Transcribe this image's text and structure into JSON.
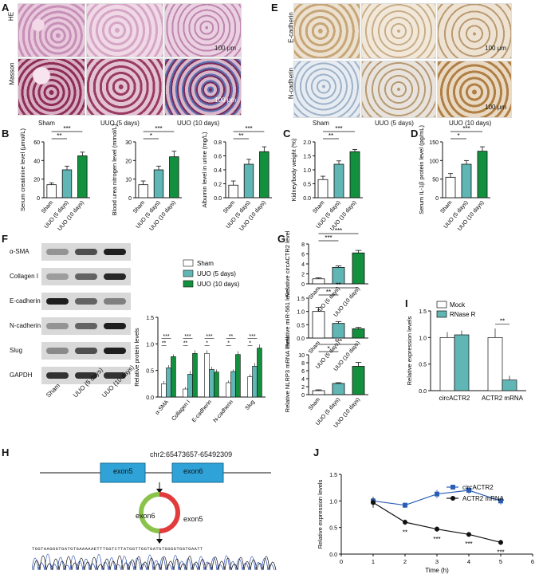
{
  "panels": {
    "A": {
      "letter": "A",
      "row_labels": [
        "HE",
        "Masson"
      ],
      "col_labels": [
        "Sham",
        "UUO (5 days)",
        "UUO (10 days)"
      ],
      "scalebar": "100 μm",
      "colors": {
        "he": "#c48fb4",
        "masson": "#8f3a5a"
      }
    },
    "E": {
      "letter": "E",
      "row_labels": [
        "E-cadherin",
        "N-cadherin"
      ],
      "col_labels": [
        "Sham",
        "UUO (5 days)",
        "UUO (10 days)"
      ],
      "scalebar": "100 μm",
      "colors": {
        "ihc": "#c9a77a",
        "ihc_bg": "#b8c6d6"
      }
    },
    "F": {
      "letter": "F",
      "blot_labels": [
        "α-SMA",
        "Collagen I",
        "E-cadherin",
        "N-cadherin",
        "Slug",
        "GAPDH"
      ],
      "blot_cols": [
        "Sham",
        "UUO (5 days)",
        "UUO (10 days)"
      ]
    },
    "H": {
      "letter": "H",
      "locus": "chr2:65473657-65492309",
      "exon5": "exon5",
      "exon6": "exon6",
      "sequence": "TGGTAAGGGTGATGTGAAAAAETTTGGTCTTATGGTTGGTGATGTGGGGTGGTGAATT"
    }
  },
  "colors": {
    "sham": "#ffffff",
    "uuo5": "#5fb6b4",
    "uuo10": "#13903e",
    "mock": "#ffffff",
    "rnase": "#5fb6b4",
    "circ_line": "#2b5fb5",
    "mrna_line": "#111111"
  },
  "chart_data": [
    {
      "id": "B1",
      "panel": "B",
      "type": "bar",
      "categories": [
        "Sham",
        "UUO (5 days)",
        "UUO (10 days)"
      ],
      "values": [
        14,
        30,
        45
      ],
      "errors": [
        2,
        4,
        4
      ],
      "ylabel": "Serum creatinine level (μmol/L)",
      "ylim": [
        0,
        60
      ],
      "yticks": [
        0,
        20,
        40,
        60
      ],
      "sig": [
        {
          "from": 0,
          "to": 1,
          "label": "**"
        },
        {
          "from": 0,
          "to": 2,
          "label": "***"
        }
      ]
    },
    {
      "id": "B2",
      "panel": "B",
      "type": "bar",
      "categories": [
        "Sham",
        "UUO (5 days)",
        "UUO (10 days)"
      ],
      "values": [
        7,
        15,
        22
      ],
      "errors": [
        2,
        2,
        3
      ],
      "ylabel": "Blood urea nitrogen level (mmol/L)",
      "ylim": [
        0,
        30
      ],
      "yticks": [
        0,
        10,
        20,
        30
      ],
      "sig": [
        {
          "from": 0,
          "to": 1,
          "label": "*"
        },
        {
          "from": 0,
          "to": 2,
          "label": "***"
        }
      ]
    },
    {
      "id": "B3",
      "panel": "B",
      "type": "bar",
      "categories": [
        "Sham",
        "UUO (5 days)",
        "UUO (10 days)"
      ],
      "values": [
        0.18,
        0.48,
        0.66
      ],
      "errors": [
        0.06,
        0.07,
        0.07
      ],
      "ylabel": "Albumin level in urine (mg/L)",
      "ylim": [
        0,
        0.8
      ],
      "yticks": [
        0.0,
        0.2,
        0.4,
        0.6,
        0.8
      ],
      "sig": [
        {
          "from": 0,
          "to": 1,
          "label": "**"
        },
        {
          "from": 0,
          "to": 2,
          "label": "***"
        }
      ]
    },
    {
      "id": "C",
      "panel": "C",
      "type": "bar",
      "categories": [
        "Sham",
        "UUO (5 days)",
        "UUO (10 days)"
      ],
      "values": [
        0.65,
        1.2,
        1.65
      ],
      "errors": [
        0.12,
        0.12,
        0.08
      ],
      "ylabel": "Kidney/body weight (%)",
      "ylim": [
        0,
        2.0
      ],
      "yticks": [
        0.0,
        0.5,
        1.0,
        1.5,
        2.0
      ],
      "sig": [
        {
          "from": 0,
          "to": 1,
          "label": "**"
        },
        {
          "from": 0,
          "to": 2,
          "label": "***"
        }
      ]
    },
    {
      "id": "D",
      "panel": "D",
      "type": "bar",
      "categories": [
        "Sham",
        "UUO (5 days)",
        "UUO (10 days)"
      ],
      "values": [
        55,
        90,
        125
      ],
      "errors": [
        10,
        10,
        12
      ],
      "ylabel": "Serum IL-1β protein level (pg/mL)",
      "ylim": [
        0,
        150
      ],
      "yticks": [
        0,
        50,
        100,
        150
      ],
      "sig": [
        {
          "from": 0,
          "to": 1,
          "label": "*"
        },
        {
          "from": 0,
          "to": 2,
          "label": "***"
        }
      ]
    },
    {
      "id": "F",
      "panel": "F",
      "type": "bar",
      "categories": [
        "α-SMA",
        "Collagen I",
        "E-cadherin",
        "N-cadherin",
        "Slug"
      ],
      "series": [
        {
          "name": "Sham",
          "values": [
            0.25,
            0.15,
            0.82,
            0.27,
            0.38
          ],
          "errors": [
            0.05,
            0.04,
            0.06,
            0.04,
            0.05
          ]
        },
        {
          "name": "UUO (5 days)",
          "values": [
            0.55,
            0.43,
            0.52,
            0.48,
            0.58
          ],
          "errors": [
            0.05,
            0.06,
            0.05,
            0.04,
            0.06
          ]
        },
        {
          "name": "UUO (10 days)",
          "values": [
            0.76,
            0.82,
            0.47,
            0.8,
            0.92
          ],
          "errors": [
            0.04,
            0.06,
            0.05,
            0.06,
            0.07
          ]
        }
      ],
      "ylabel": "Relative protein levels",
      "ylim": [
        0,
        1.5
      ],
      "yticks": [
        0.0,
        0.5,
        1.0,
        1.5
      ],
      "sig": [
        [
          "**",
          "***"
        ],
        [
          "**",
          "***"
        ],
        [
          "*",
          "***"
        ],
        [
          "*",
          "**"
        ],
        [
          "*",
          "***"
        ]
      ]
    },
    {
      "id": "G1",
      "panel": "G",
      "type": "bar",
      "categories": [
        "Sham",
        "UUO (5 days)",
        "UUO (10 days)"
      ],
      "values": [
        1,
        3.3,
        6.2
      ],
      "errors": [
        0.2,
        0.3,
        0.5
      ],
      "ylabel": "Relative circACTR2 level",
      "ylim": [
        0,
        8
      ],
      "yticks": [
        0,
        2,
        4,
        6,
        8
      ],
      "sig": [
        {
          "from": 0,
          "to": 1,
          "label": "***"
        },
        {
          "from": 0,
          "to": 2,
          "label": "***"
        }
      ]
    },
    {
      "id": "G2",
      "panel": "G",
      "type": "bar",
      "categories": [
        "Sham",
        "UUO (5 days)",
        "UUO (10 days)"
      ],
      "values": [
        1.0,
        0.55,
        0.35
      ],
      "errors": [
        0.15,
        0.07,
        0.05
      ],
      "ylabel": "Relative miR-561 level",
      "ylim": [
        0,
        1.5
      ],
      "yticks": [
        0.0,
        0.5,
        1.0,
        1.5
      ],
      "sig": [
        {
          "from": 0,
          "to": 1,
          "label": "**"
        },
        {
          "from": 0,
          "to": 2,
          "label": "**"
        }
      ]
    },
    {
      "id": "G3",
      "panel": "G",
      "type": "bar",
      "categories": [
        "Sham",
        "UUO (5 days)",
        "UUO (10 days)"
      ],
      "values": [
        1,
        2.8,
        7.1
      ],
      "errors": [
        0.2,
        0.2,
        1.0
      ],
      "ylabel": "Relative NLRP3 mRNA level",
      "ylim": [
        0,
        10
      ],
      "yticks": [
        0,
        2,
        4,
        6,
        8,
        10
      ],
      "sig": [
        {
          "from": 0,
          "to": 1,
          "label": "*"
        },
        {
          "from": 0,
          "to": 2,
          "label": "***"
        }
      ]
    },
    {
      "id": "I",
      "panel": "I",
      "type": "bar",
      "categories": [
        "circACTR2",
        "ACTR2 mRNA"
      ],
      "series": [
        {
          "name": "Mock",
          "values": [
            1.0,
            1.0
          ],
          "errors": [
            0.1,
            0.17
          ]
        },
        {
          "name": "RNase R",
          "values": [
            1.05,
            0.2
          ],
          "errors": [
            0.08,
            0.08
          ]
        }
      ],
      "ylabel": "Relative expression levels",
      "ylim": [
        0,
        1.5
      ],
      "yticks": [
        0.0,
        0.5,
        1.0,
        1.5
      ],
      "sig": [
        {
          "category": 1,
          "label": "**"
        }
      ]
    },
    {
      "id": "J",
      "panel": "J",
      "type": "line",
      "x": [
        1,
        2,
        3,
        4,
        5
      ],
      "series": [
        {
          "name": "circACTR2",
          "values": [
            1.0,
            0.92,
            1.13,
            1.2,
            1.0
          ],
          "errors": [
            0.08,
            0.05,
            0.08,
            0.07,
            0.07
          ]
        },
        {
          "name": "ACTR2 mRNA",
          "values": [
            0.97,
            0.6,
            0.47,
            0.37,
            0.22
          ],
          "errors": [
            0.1,
            0.05,
            0.05,
            0.04,
            0.05
          ]
        }
      ],
      "xlabel": "Time (h)",
      "ylabel": "Relative expression levels",
      "xlim": [
        0,
        6
      ],
      "xticks": [
        0,
        1,
        2,
        3,
        4,
        5,
        6
      ],
      "ylim": [
        0,
        1.5
      ],
      "yticks": [
        0.0,
        0.5,
        1.0,
        1.5
      ],
      "sig": [
        {
          "x": 2,
          "label": "**"
        },
        {
          "x": 3,
          "label": "***"
        },
        {
          "x": 4,
          "label": "***"
        },
        {
          "x": 5,
          "label": "***"
        }
      ],
      "legend": "top-right"
    }
  ]
}
